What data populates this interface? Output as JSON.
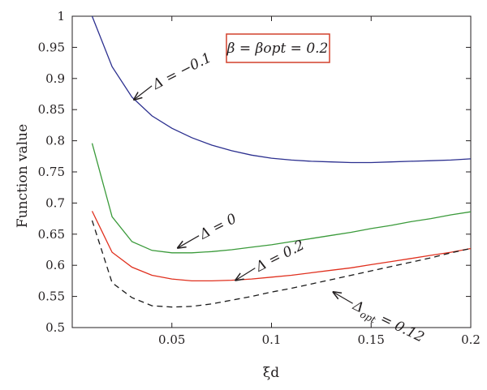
{
  "chart_data": {
    "type": "line",
    "xlabel": "ξd",
    "ylabel": "Function value",
    "xlim": [
      0,
      0.2
    ],
    "ylim": [
      0.5,
      1.0
    ],
    "xticks": [
      0.05,
      0.1,
      0.15,
      0.2
    ],
    "xtick_labels": [
      "0.05",
      "0.1",
      "0.15",
      "0.2"
    ],
    "yticks": [
      0.5,
      0.55,
      0.6,
      0.65,
      0.7,
      0.75,
      0.8,
      0.85,
      0.9,
      0.95,
      1.0
    ],
    "ytick_labels": [
      "0.5",
      "0.55",
      "0.6",
      "0.65",
      "0.7",
      "0.75",
      "0.8",
      "0.85",
      "0.9",
      "0.95",
      "1"
    ],
    "grid": false,
    "legend": "none",
    "box_label": "β = βopt = 0.2",
    "box_color": "#d2402b",
    "series": [
      {
        "name": "Δ = −0.1",
        "color": "#2b2f8f",
        "dash": "solid",
        "x": [
          0.01,
          0.02,
          0.03,
          0.04,
          0.05,
          0.06,
          0.07,
          0.08,
          0.09,
          0.1,
          0.11,
          0.12,
          0.13,
          0.14,
          0.15,
          0.16,
          0.17,
          0.18,
          0.19,
          0.2
        ],
        "y": [
          1.0,
          0.919,
          0.87,
          0.84,
          0.82,
          0.805,
          0.793,
          0.784,
          0.777,
          0.772,
          0.769,
          0.767,
          0.766,
          0.765,
          0.765,
          0.766,
          0.767,
          0.768,
          0.769,
          0.771
        ]
      },
      {
        "name": "Δ = 0",
        "color": "#3a9a3a",
        "dash": "solid",
        "x": [
          0.01,
          0.02,
          0.03,
          0.04,
          0.05,
          0.06,
          0.07,
          0.08,
          0.09,
          0.1,
          0.11,
          0.12,
          0.13,
          0.14,
          0.15,
          0.16,
          0.17,
          0.18,
          0.19,
          0.2
        ],
        "y": [
          0.796,
          0.678,
          0.638,
          0.624,
          0.62,
          0.62,
          0.622,
          0.625,
          0.629,
          0.633,
          0.638,
          0.643,
          0.648,
          0.653,
          0.659,
          0.664,
          0.67,
          0.675,
          0.681,
          0.686
        ]
      },
      {
        "name": "Δ = 0.2",
        "color": "#e0301e",
        "dash": "solid",
        "x": [
          0.01,
          0.02,
          0.03,
          0.04,
          0.05,
          0.06,
          0.07,
          0.08,
          0.09,
          0.1,
          0.11,
          0.12,
          0.13,
          0.14,
          0.15,
          0.16,
          0.17,
          0.18,
          0.19,
          0.2
        ],
        "y": [
          0.687,
          0.621,
          0.597,
          0.584,
          0.578,
          0.575,
          0.575,
          0.576,
          0.578,
          0.581,
          0.584,
          0.588,
          0.592,
          0.596,
          0.601,
          0.606,
          0.611,
          0.616,
          0.621,
          0.627
        ]
      },
      {
        "name": "Δopt = 0.12",
        "color": "#1a1a1a",
        "dash": "dashed",
        "x": [
          0.01,
          0.02,
          0.03,
          0.04,
          0.05,
          0.06,
          0.07,
          0.08,
          0.09,
          0.1,
          0.11,
          0.12,
          0.13,
          0.14,
          0.15,
          0.16,
          0.17,
          0.18,
          0.19,
          0.2
        ],
        "y": [
          0.672,
          0.572,
          0.548,
          0.535,
          0.533,
          0.534,
          0.538,
          0.544,
          0.55,
          0.557,
          0.563,
          0.57,
          0.577,
          0.584,
          0.591,
          0.598,
          0.605,
          0.612,
          0.62,
          0.627
        ]
      }
    ],
    "annotations": [
      {
        "label": "Δ = −0.1",
        "at": [
          0.031,
          0.866
        ]
      },
      {
        "label": "Δ = 0",
        "at": [
          0.053,
          0.628
        ]
      },
      {
        "label": "Δ = 0.2",
        "at": [
          0.082,
          0.576
        ]
      },
      {
        "label": "Δopt = 0.12",
        "at": [
          0.131,
          0.557
        ]
      }
    ]
  }
}
